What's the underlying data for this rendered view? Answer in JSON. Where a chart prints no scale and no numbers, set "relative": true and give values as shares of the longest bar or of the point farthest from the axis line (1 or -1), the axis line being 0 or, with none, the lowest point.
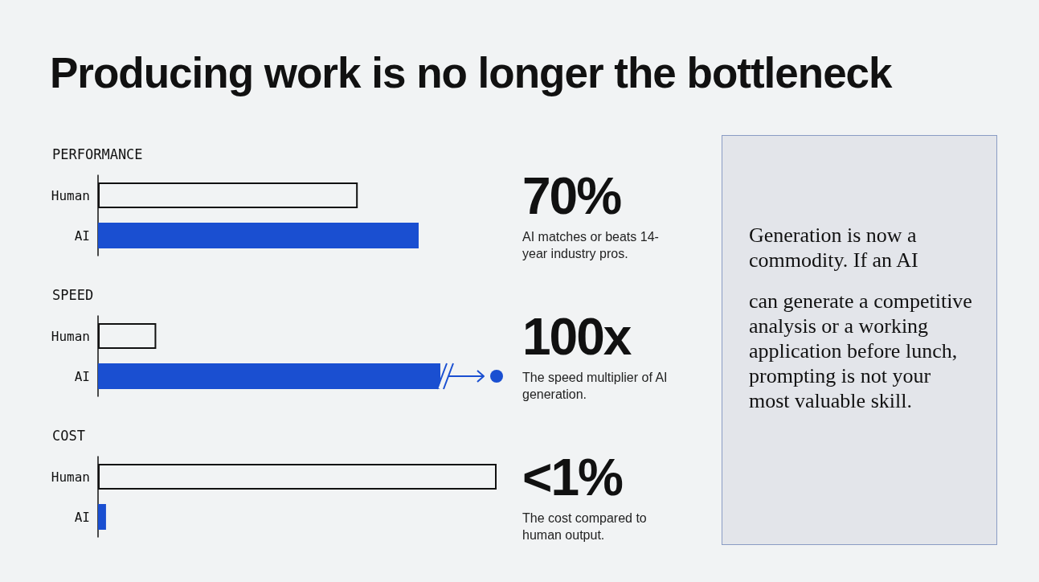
{
  "chart_data": [
    {
      "type": "other",
      "title": "Producing work is no longer the bottleneck"
    },
    {
      "type": "bar",
      "orientation": "horizontal",
      "relative": true,
      "title": "PERFORMANCE",
      "categories": [
        "Human",
        "AI"
      ],
      "values": [
        0.81,
        1
      ],
      "colors": [
        "#f1f3f4",
        "#1a4fd1"
      ],
      "annotations": [
        "70%",
        "AI matches or beats 14-year industry pros."
      ]
    },
    {
      "type": "bar",
      "orientation": "horizontal",
      "relative": true,
      "title": "SPEED",
      "categories": [
        "Human",
        "AI"
      ],
      "values": [
        0.17,
        1
      ],
      "colors": [
        "#f1f3f4",
        "#1a4fd1"
      ],
      "annotations": [
        "100x",
        "The speed multiplier of AI generation."
      ]
    },
    {
      "type": "bar",
      "orientation": "horizontal",
      "relative": true,
      "title": "COST",
      "categories": [
        "Human",
        "AI"
      ],
      "values": [
        1,
        0.02
      ],
      "colors": [
        "#f1f3f4",
        "#1a4fd1"
      ],
      "annotations": [
        "<1%",
        "The cost compared to human output."
      ]
    },
    {
      "type": "other",
      "annotations": [
        "Generation is now a commodity. If an AI",
        "can generate a competitive analysis or a working application before lunch, prompting is not your most valuable skill."
      ]
    }
  ]
}
